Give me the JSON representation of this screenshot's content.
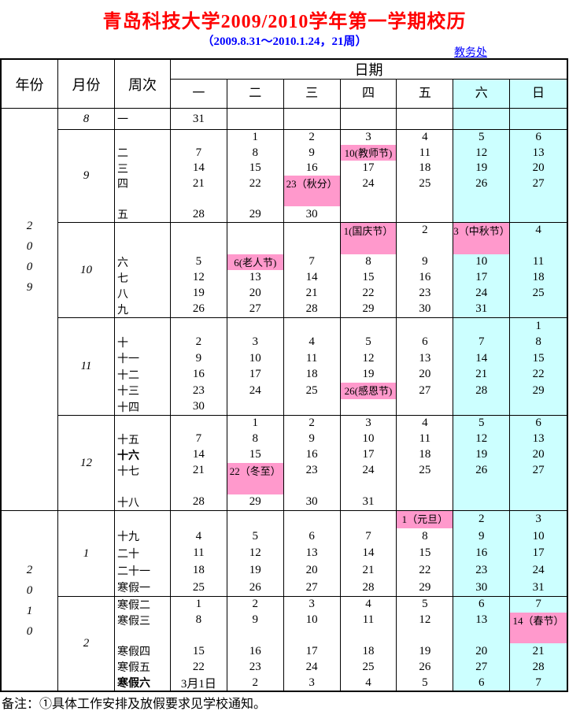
{
  "title": "青岛科技大学2009/2010学年第一学期校历",
  "subtitle": "（2009.8.31～2010.1.24，21周）",
  "dept_link": "教务处",
  "note": "备注：①具体工作安排及放假要求见学校通知。",
  "colors": {
    "title_red": "#FF0000",
    "link_blue": "#0000FF",
    "holiday_pink": "#FF99CC",
    "weekend_cyan": "#CCFFFF"
  },
  "header": {
    "year": "年份",
    "month": "月份",
    "week": "周次",
    "date": "日期",
    "days": [
      "一",
      "二",
      "三",
      "四",
      "五",
      "六",
      "日"
    ]
  },
  "year_groups": [
    {
      "year": "2009",
      "digits": [
        "2",
        "0",
        "0",
        "9"
      ]
    },
    {
      "year": "2010",
      "digits": [
        "2",
        "0",
        "1",
        "0"
      ]
    }
  ],
  "months": [
    {
      "label": "8",
      "rows": 1,
      "lines": [
        {
          "week": "一",
          "days": [
            "31",
            "",
            "",
            "",
            "",
            "",
            ""
          ]
        }
      ]
    },
    {
      "label": "9",
      "rows": 6,
      "lines": [
        {
          "week": "",
          "days": [
            "",
            "1",
            "2",
            "3",
            "4",
            "5",
            "6"
          ]
        },
        {
          "week": "二",
          "days": [
            "7",
            "8",
            "9",
            {
              "t": "10(教师节)",
              "hl": 1
            },
            "11",
            "12",
            "13"
          ]
        },
        {
          "week": "三",
          "days": [
            "14",
            "15",
            "16",
            "17",
            "18",
            "19",
            "20"
          ]
        },
        {
          "week": "四",
          "days": [
            "21",
            "22",
            {
              "t": "23（秋分）",
              "hl": 1,
              "span": 2
            },
            "24",
            "25",
            "26",
            "27"
          ]
        },
        {
          "week": "",
          "days": [
            "",
            "",
            "",
            "",
            "",
            "",
            ""
          ]
        },
        {
          "week": "五",
          "days": [
            "28",
            "29",
            "30",
            "",
            "",
            "",
            ""
          ]
        }
      ]
    },
    {
      "label": "10",
      "rows": 6,
      "lines": [
        {
          "week": "",
          "days": [
            "",
            "",
            "",
            {
              "t": "1(国庆节）",
              "hl": 1,
              "span": 2
            },
            "2",
            {
              "t": "3（中秋节）",
              "hl": 1,
              "span": 2
            },
            "4"
          ]
        },
        {
          "week": "",
          "days": [
            "",
            "",
            "",
            "",
            "",
            "",
            ""
          ]
        },
        {
          "week": "六",
          "days": [
            "5",
            {
              "t": "6(老人节)",
              "hl": 1
            },
            "7",
            "8",
            "9",
            "10",
            "11"
          ]
        },
        {
          "week": "七",
          "days": [
            "12",
            "13",
            "14",
            "15",
            "16",
            "17",
            "18"
          ]
        },
        {
          "week": "八",
          "days": [
            "19",
            "20",
            "21",
            "22",
            "23",
            "24",
            "25"
          ]
        },
        {
          "week": "九",
          "days": [
            "26",
            "27",
            "28",
            "29",
            "30",
            "31",
            ""
          ]
        }
      ]
    },
    {
      "label": "11",
      "rows": 6,
      "lines": [
        {
          "week": "",
          "days": [
            "",
            "",
            "",
            "",
            "",
            "",
            "1"
          ]
        },
        {
          "week": "十",
          "days": [
            "2",
            "3",
            "4",
            "5",
            "6",
            "7",
            "8"
          ]
        },
        {
          "week": "十一",
          "days": [
            "9",
            "10",
            "11",
            "12",
            "13",
            "14",
            "15"
          ]
        },
        {
          "week": "十二",
          "days": [
            "16",
            "17",
            "18",
            "19",
            "20",
            "21",
            "22"
          ]
        },
        {
          "week": "十三",
          "days": [
            "23",
            "24",
            "25",
            {
              "t": "26(感恩节)",
              "hl": 1
            },
            "27",
            "28",
            "29"
          ]
        },
        {
          "week": "十四",
          "days": [
            "30",
            "",
            "",
            "",
            "",
            "",
            ""
          ]
        }
      ]
    },
    {
      "label": "12",
      "rows": 6,
      "lines": [
        {
          "week": "",
          "days": [
            "",
            "1",
            "2",
            "3",
            "4",
            "5",
            "6"
          ]
        },
        {
          "week": "十五",
          "days": [
            "7",
            "8",
            "9",
            "10",
            "11",
            "12",
            "13"
          ]
        },
        {
          "week": {
            "t": "十六",
            "b": 1
          },
          "days": [
            "14",
            "15",
            "16",
            "17",
            "18",
            "19",
            "20"
          ]
        },
        {
          "week": "十七",
          "days": [
            "21",
            {
              "t": "22（冬至）",
              "hl": 1,
              "span": 2
            },
            "23",
            "24",
            "25",
            "26",
            "27"
          ]
        },
        {
          "week": "",
          "days": [
            "",
            "",
            "",
            "",
            "",
            "",
            ""
          ]
        },
        {
          "week": "十八",
          "days": [
            "28",
            "29",
            "30",
            "31",
            "",
            "",
            ""
          ]
        }
      ]
    },
    {
      "label": "1",
      "rows": 5,
      "lines": [
        {
          "week": "",
          "days": [
            "",
            "",
            "",
            "",
            {
              "t": "1（元旦）",
              "hl": 1
            },
            "2",
            "3"
          ]
        },
        {
          "week": "十九",
          "days": [
            "4",
            "5",
            "6",
            "7",
            "8",
            "9",
            "10"
          ]
        },
        {
          "week": "二十",
          "days": [
            "11",
            "12",
            "13",
            "14",
            "15",
            "16",
            "17"
          ]
        },
        {
          "week": "二十一",
          "days": [
            "18",
            "19",
            "20",
            "21",
            "22",
            "23",
            "24"
          ]
        },
        {
          "week": "寒假一",
          "days": [
            "25",
            "26",
            "27",
            "28",
            "29",
            "30",
            "31"
          ]
        }
      ]
    },
    {
      "label": "2",
      "rows": 6,
      "lines": [
        {
          "week": "寒假二",
          "days": [
            "1",
            "2",
            "3",
            "4",
            "5",
            "6",
            "7"
          ]
        },
        {
          "week": "寒假三",
          "days": [
            "8",
            "9",
            "10",
            "11",
            "12",
            "13",
            {
              "t": "14（春节）",
              "hl": 1,
              "span": 2
            }
          ]
        },
        {
          "week": "",
          "days": [
            "",
            "",
            "",
            "",
            "",
            "",
            ""
          ]
        },
        {
          "week": "寒假四",
          "days": [
            "15",
            "16",
            "17",
            "18",
            "19",
            "20",
            "21"
          ]
        },
        {
          "week": "寒假五",
          "days": [
            "22",
            "23",
            "24",
            "25",
            "26",
            "27",
            "28"
          ]
        },
        {
          "week": {
            "t": "寒假六",
            "b": 1
          },
          "days": [
            "3月1日",
            "2",
            "3",
            "4",
            "5",
            "6",
            "7"
          ]
        }
      ]
    }
  ]
}
